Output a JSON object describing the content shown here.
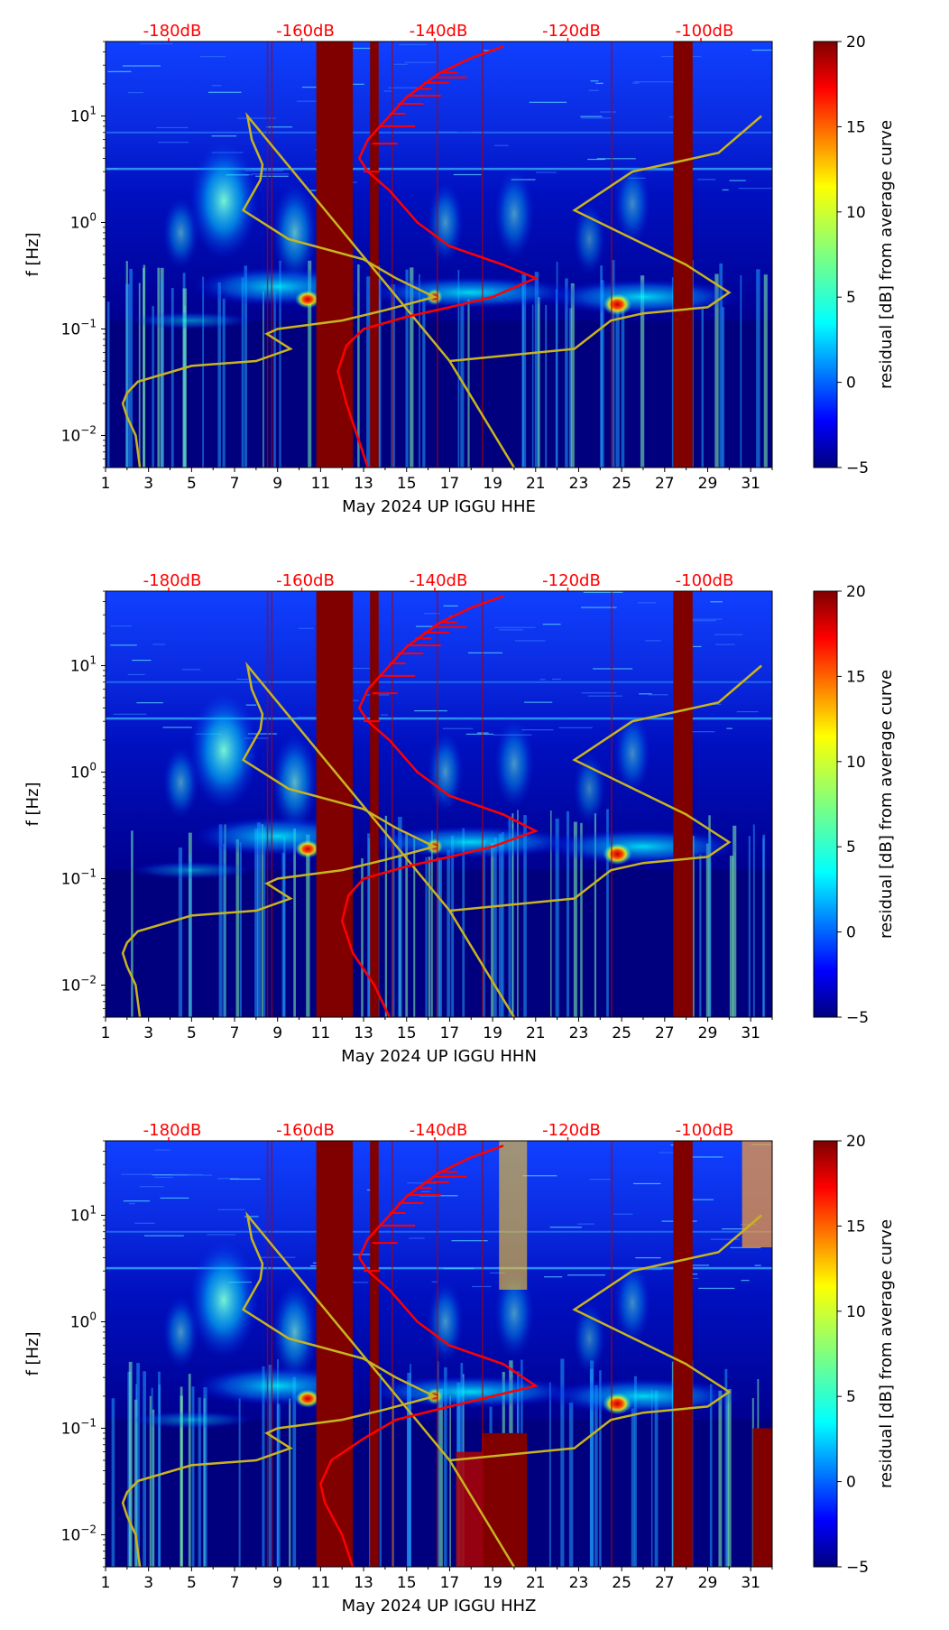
{
  "palette": {
    "bg": "#00007f",
    "red_curve": "#ff0000",
    "yellow_curve": "#c8b41e",
    "gap": "#800000"
  },
  "colorbar": {
    "label": "residual [dB] from average curve",
    "ticks": [
      "20",
      "15",
      "10",
      "5",
      "0",
      "−5"
    ],
    "range": [
      -5,
      20
    ]
  },
  "top_axis": {
    "labels": [
      "-180dB",
      "-160dB",
      "-140dB",
      "-120dB",
      "-100dB"
    ]
  },
  "ylabel": "f [Hz]",
  "x_ticks": [
    "1",
    "3",
    "5",
    "7",
    "9",
    "11",
    "13",
    "15",
    "17",
    "19",
    "21",
    "23",
    "25",
    "27",
    "29",
    "31"
  ],
  "y_ticks": [
    {
      "base": "10",
      "exp": "1",
      "value": 10
    },
    {
      "base": "10",
      "exp": "0",
      "value": 1
    },
    {
      "base": "10",
      "exp": "−1",
      "value": 0.1
    },
    {
      "base": "10",
      "exp": "−2",
      "value": 0.01
    }
  ],
  "chart_data": [
    {
      "type": "heatmap",
      "title": "",
      "xlabel": "May 2024 UP IGGU  HHE",
      "ylabel": "f [Hz]",
      "xlim": [
        1,
        32
      ],
      "ylim_hz": [
        0.005,
        50
      ],
      "gaps_days": [
        [
          10.8,
          12.5
        ],
        [
          13.3,
          13.7
        ],
        [
          27.4,
          28.3
        ]
      ],
      "red_curve": [
        [
          13.2,
          0.005
        ],
        [
          12.7,
          0.01
        ],
        [
          12.2,
          0.02
        ],
        [
          11.8,
          0.04
        ],
        [
          12.2,
          0.07
        ],
        [
          13,
          0.1
        ],
        [
          15,
          0.13
        ],
        [
          17,
          0.16
        ],
        [
          19,
          0.2
        ],
        [
          21,
          0.3
        ],
        [
          19.5,
          0.4
        ],
        [
          17,
          0.6
        ],
        [
          15.5,
          1
        ],
        [
          14.2,
          2
        ],
        [
          13.2,
          3
        ],
        [
          12.8,
          4
        ],
        [
          13.2,
          6
        ],
        [
          14,
          9
        ],
        [
          15,
          15
        ],
        [
          16.5,
          25
        ],
        [
          18,
          35
        ],
        [
          19.5,
          45
        ]
      ],
      "yellow_curve": [
        [
          2.6,
          0.005
        ],
        [
          2.4,
          0.01
        ],
        [
          2.0,
          0.015
        ],
        [
          1.8,
          0.02
        ],
        [
          2.0,
          0.025
        ],
        [
          2.5,
          0.032
        ],
        [
          5,
          0.045
        ],
        [
          8,
          0.05
        ],
        [
          9.6,
          0.065
        ],
        [
          8.5,
          0.09
        ],
        [
          9,
          0.1
        ],
        [
          12,
          0.12
        ],
        [
          14,
          0.15
        ],
        [
          16.3,
          0.2
        ],
        [
          14.5,
          0.3
        ],
        [
          13,
          0.45
        ],
        [
          9.5,
          0.7
        ],
        [
          7.4,
          1.3
        ],
        [
          8.2,
          2.5
        ],
        [
          8.3,
          3.5
        ],
        [
          7.8,
          6
        ],
        [
          7.6,
          10
        ],
        [
          17,
          0.05
        ],
        [
          20,
          0.005
        ],
        [
          17,
          0.05
        ],
        [
          22.8,
          0.065
        ],
        [
          24.5,
          0.12
        ],
        [
          26,
          0.14
        ],
        [
          29,
          0.16
        ],
        [
          30,
          0.22
        ],
        [
          28,
          0.4
        ],
        [
          22.8,
          1.3
        ],
        [
          25.5,
          3
        ],
        [
          29.5,
          4.5
        ],
        [
          31.5,
          10
        ]
      ]
    },
    {
      "type": "heatmap",
      "title": "",
      "xlabel": "May 2024 UP IGGU  HHN",
      "ylabel": "f [Hz]",
      "xlim": [
        1,
        32
      ],
      "ylim_hz": [
        0.005,
        50
      ],
      "gaps_days": [
        [
          10.8,
          12.5
        ],
        [
          13.3,
          13.7
        ],
        [
          27.4,
          28.3
        ]
      ],
      "red_curve": [
        [
          14.2,
          0.005
        ],
        [
          13.5,
          0.01
        ],
        [
          12.5,
          0.02
        ],
        [
          12,
          0.04
        ],
        [
          12.3,
          0.07
        ],
        [
          13,
          0.1
        ],
        [
          15,
          0.13
        ],
        [
          17,
          0.16
        ],
        [
          19,
          0.2
        ],
        [
          21,
          0.28
        ],
        [
          19.5,
          0.4
        ],
        [
          17,
          0.6
        ],
        [
          15.5,
          1
        ],
        [
          14.2,
          2
        ],
        [
          13.2,
          3
        ],
        [
          12.8,
          4
        ],
        [
          13.2,
          6
        ],
        [
          14,
          9
        ],
        [
          15,
          15
        ],
        [
          16.5,
          25
        ],
        [
          18,
          35
        ],
        [
          19.5,
          45
        ]
      ],
      "yellow_curve": [
        [
          2.6,
          0.005
        ],
        [
          2.4,
          0.01
        ],
        [
          2.0,
          0.015
        ],
        [
          1.8,
          0.02
        ],
        [
          2.0,
          0.025
        ],
        [
          2.5,
          0.032
        ],
        [
          5,
          0.045
        ],
        [
          8,
          0.05
        ],
        [
          9.6,
          0.065
        ],
        [
          8.5,
          0.09
        ],
        [
          9,
          0.1
        ],
        [
          12,
          0.12
        ],
        [
          14,
          0.15
        ],
        [
          16.3,
          0.2
        ],
        [
          14.5,
          0.3
        ],
        [
          13,
          0.45
        ],
        [
          9.5,
          0.7
        ],
        [
          7.4,
          1.3
        ],
        [
          8.2,
          2.5
        ],
        [
          8.3,
          3.5
        ],
        [
          7.8,
          6
        ],
        [
          7.6,
          10
        ],
        [
          17,
          0.05
        ],
        [
          20,
          0.005
        ],
        [
          17,
          0.05
        ],
        [
          22.8,
          0.065
        ],
        [
          24.5,
          0.12
        ],
        [
          26,
          0.14
        ],
        [
          29,
          0.16
        ],
        [
          30,
          0.22
        ],
        [
          28,
          0.4
        ],
        [
          22.8,
          1.3
        ],
        [
          25.5,
          3
        ],
        [
          29.5,
          4.5
        ],
        [
          31.5,
          10
        ]
      ]
    },
    {
      "type": "heatmap",
      "title": "",
      "xlabel": "May 2024 UP IGGU  HHZ",
      "ylabel": "f [Hz]",
      "xlim": [
        1,
        32
      ],
      "ylim_hz": [
        0.005,
        50
      ],
      "gaps_days": [
        [
          10.8,
          12.5
        ],
        [
          13.3,
          13.7
        ],
        [
          27.4,
          28.3
        ]
      ],
      "red_curve": [
        [
          12.5,
          0.005
        ],
        [
          12,
          0.01
        ],
        [
          11.2,
          0.02
        ],
        [
          11,
          0.03
        ],
        [
          11.5,
          0.05
        ],
        [
          13,
          0.08
        ],
        [
          14.5,
          0.12
        ],
        [
          17,
          0.16
        ],
        [
          19,
          0.2
        ],
        [
          21,
          0.25
        ],
        [
          19.5,
          0.4
        ],
        [
          17,
          0.6
        ],
        [
          15.5,
          1
        ],
        [
          14.2,
          2
        ],
        [
          13.2,
          3
        ],
        [
          12.8,
          4
        ],
        [
          13.2,
          6
        ],
        [
          14,
          9
        ],
        [
          15,
          15
        ],
        [
          16.5,
          25
        ],
        [
          18,
          35
        ],
        [
          19.5,
          45
        ]
      ],
      "yellow_curve": [
        [
          2.6,
          0.005
        ],
        [
          2.4,
          0.01
        ],
        [
          2.0,
          0.015
        ],
        [
          1.8,
          0.02
        ],
        [
          2.0,
          0.025
        ],
        [
          2.5,
          0.032
        ],
        [
          5,
          0.045
        ],
        [
          8,
          0.05
        ],
        [
          9.6,
          0.065
        ],
        [
          8.5,
          0.09
        ],
        [
          9,
          0.1
        ],
        [
          12,
          0.12
        ],
        [
          14,
          0.15
        ],
        [
          16.3,
          0.2
        ],
        [
          14.5,
          0.3
        ],
        [
          13,
          0.45
        ],
        [
          9.5,
          0.7
        ],
        [
          7.4,
          1.3
        ],
        [
          8.2,
          2.5
        ],
        [
          8.3,
          3.5
        ],
        [
          7.8,
          6
        ],
        [
          7.6,
          10
        ],
        [
          17,
          0.05
        ],
        [
          20,
          0.005
        ],
        [
          17,
          0.05
        ],
        [
          22.8,
          0.065
        ],
        [
          24.5,
          0.12
        ],
        [
          26,
          0.14
        ],
        [
          29,
          0.16
        ],
        [
          30,
          0.22
        ],
        [
          28,
          0.4
        ],
        [
          22.8,
          1.3
        ],
        [
          25.5,
          3
        ],
        [
          29.5,
          4.5
        ],
        [
          31.5,
          10
        ]
      ]
    }
  ]
}
